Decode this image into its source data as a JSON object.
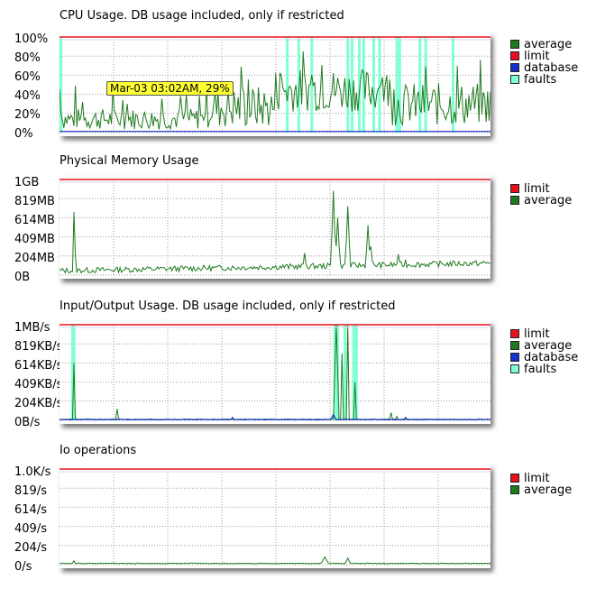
{
  "chart_data": [
    {
      "type": "line",
      "title": "CPU Usage. DB usage included, only if restricted",
      "yticks": [
        "100%",
        "80%",
        "60%",
        "40%",
        "20%",
        "0%"
      ],
      "ylim": [
        0,
        100
      ],
      "series": [
        {
          "name": "average",
          "color": "#1f7a1f"
        },
        {
          "name": "limit",
          "color": "#e8101e"
        },
        {
          "name": "database",
          "color": "#1530c8"
        },
        {
          "name": "faults",
          "color": "#7fffd4"
        }
      ],
      "limit_value": 100,
      "tooltip": "Mar-03 03:02AM, 29%"
    },
    {
      "type": "line",
      "title": "Physical Memory Usage",
      "yticks": [
        "1GB",
        "819MB",
        "614MB",
        "409MB",
        "204MB",
        "0B"
      ],
      "ylim": [
        0,
        1024
      ],
      "series": [
        {
          "name": "limit",
          "color": "#e8101e"
        },
        {
          "name": "average",
          "color": "#1f7a1f"
        }
      ],
      "limit_value": 1024
    },
    {
      "type": "line",
      "title": "Input/Output Usage. DB usage included, only if restricted",
      "yticks": [
        "1MB/s",
        "819KB/s",
        "614KB/s",
        "409KB/s",
        "204KB/s",
        "0B/s"
      ],
      "ylim": [
        0,
        1024
      ],
      "series": [
        {
          "name": "limit",
          "color": "#e8101e"
        },
        {
          "name": "average",
          "color": "#1f7a1f"
        },
        {
          "name": "database",
          "color": "#1530c8"
        },
        {
          "name": "faults",
          "color": "#7fffd4"
        }
      ],
      "limit_value": 1024
    },
    {
      "type": "line",
      "title": "Io operations",
      "yticks": [
        "1.0K/s",
        "819/s",
        "614/s",
        "409/s",
        "204/s",
        "0/s"
      ],
      "ylim": [
        0,
        1024
      ],
      "series": [
        {
          "name": "limit",
          "color": "#e8101e"
        },
        {
          "name": "average",
          "color": "#1f7a1f"
        }
      ],
      "limit_value": 1024
    }
  ]
}
